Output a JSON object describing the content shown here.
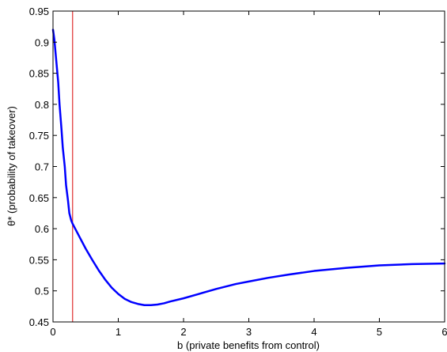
{
  "chart_data": {
    "type": "line",
    "title": "",
    "xlabel": "b (private benefits from control)",
    "ylabel": "θ* (probability of takeover)",
    "xlim": [
      0,
      6
    ],
    "ylim": [
      0.45,
      0.95
    ],
    "xticks": [
      0,
      1,
      2,
      3,
      4,
      5,
      6
    ],
    "xtick_labels": [
      "0",
      "1",
      "2",
      "3",
      "4",
      "5",
      "6"
    ],
    "yticks": [
      0.45,
      0.5,
      0.55,
      0.6,
      0.65,
      0.7,
      0.75,
      0.8,
      0.85,
      0.9,
      0.95
    ],
    "ytick_labels": [
      "0.45",
      "0.5",
      "0.55",
      "0.6",
      "0.65",
      "0.7",
      "0.75",
      "0.8",
      "0.85",
      "0.9",
      "0.95"
    ],
    "grid": false,
    "series": [
      {
        "color": "#0000ff",
        "x": [
          0,
          0.02,
          0.05,
          0.08,
          0.1,
          0.13,
          0.15,
          0.18,
          0.2,
          0.23,
          0.25,
          0.28,
          0.3,
          0.35,
          0.4,
          0.5,
          0.6,
          0.7,
          0.8,
          0.9,
          1.0,
          1.1,
          1.2,
          1.3,
          1.4,
          1.5,
          1.6,
          1.7,
          1.8,
          2.0,
          2.2,
          2.5,
          2.8,
          3.0,
          3.3,
          3.6,
          4.0,
          4.5,
          5.0,
          5.5,
          6.0
        ],
        "y": [
          0.92,
          0.905,
          0.87,
          0.835,
          0.8,
          0.76,
          0.73,
          0.7,
          0.67,
          0.645,
          0.625,
          0.613,
          0.608,
          0.598,
          0.588,
          0.568,
          0.55,
          0.533,
          0.518,
          0.505,
          0.495,
          0.487,
          0.482,
          0.479,
          0.477,
          0.477,
          0.478,
          0.48,
          0.483,
          0.488,
          0.494,
          0.503,
          0.511,
          0.515,
          0.521,
          0.526,
          0.532,
          0.537,
          0.541,
          0.543,
          0.544
        ]
      }
    ],
    "vline": {
      "x": 0.3,
      "color": "#e03030"
    }
  }
}
